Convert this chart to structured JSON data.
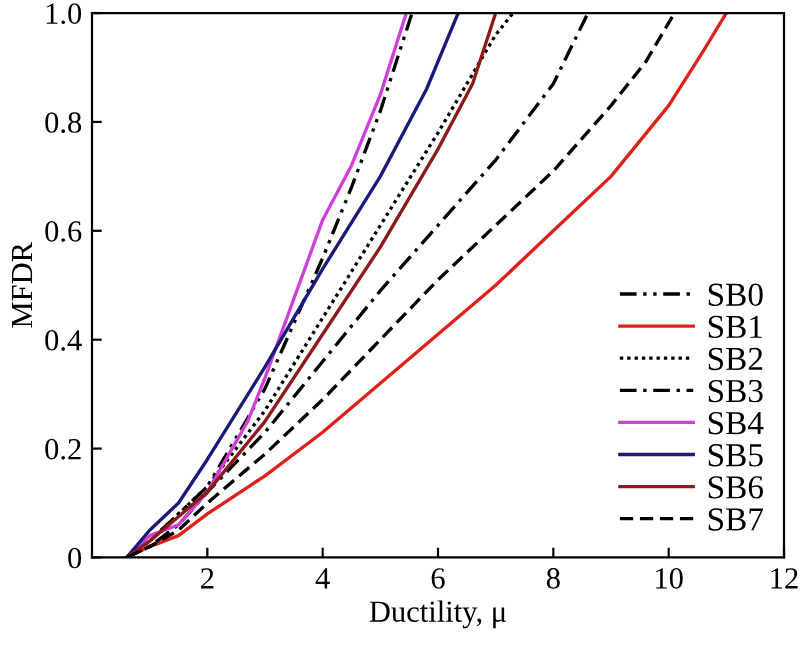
{
  "chart_data": {
    "type": "line",
    "xlabel": "Ductility, μ",
    "ylabel": "MFDR",
    "xlim": [
      0,
      12
    ],
    "ylim": [
      0,
      1.0
    ],
    "xticks": [
      2,
      4,
      6,
      8,
      10,
      12
    ],
    "yticks": [
      0,
      0.2,
      0.4,
      0.6,
      0.8,
      {
        "value": 1.0,
        "label": "1.0"
      }
    ],
    "grid": false,
    "legend": "bottom right",
    "marker": "none",
    "series": [
      {
        "name": "SB0",
        "color": "#000000",
        "line_style": "dashdotdot",
        "x": [
          0.6,
          1,
          2,
          3,
          4,
          4.5,
          5,
          5.55
        ],
        "values": [
          0,
          0.03,
          0.13,
          0.31,
          0.55,
          0.68,
          0.82,
          1.0
        ]
      },
      {
        "name": "SB1",
        "color": "#e0201c",
        "line_style": "solid",
        "x": [
          0.6,
          1,
          1.5,
          2,
          3,
          4,
          5,
          6,
          7,
          8,
          9,
          10,
          10.6,
          11
        ],
        "values": [
          0,
          0.02,
          0.04,
          0.08,
          0.15,
          0.23,
          0.32,
          0.41,
          0.5,
          0.6,
          0.7,
          0.83,
          0.93,
          1.0
        ]
      },
      {
        "name": "SB2",
        "color": "#000000",
        "line_style": "dotted",
        "x": [
          0.6,
          1,
          2,
          3,
          4,
          5,
          6,
          7,
          7.3
        ],
        "values": [
          0,
          0.03,
          0.13,
          0.27,
          0.44,
          0.61,
          0.78,
          0.96,
          1.0
        ]
      },
      {
        "name": "SB3",
        "color": "#000000",
        "line_style": "dashdot",
        "x": [
          0.6,
          1,
          1.5,
          2,
          3,
          4,
          5,
          6,
          7,
          8,
          8.6
        ],
        "values": [
          0,
          0.02,
          0.06,
          0.12,
          0.23,
          0.36,
          0.49,
          0.61,
          0.73,
          0.87,
          1.0
        ]
      },
      {
        "name": "SB4",
        "color": "#d040d8",
        "line_style": "solid",
        "x": [
          0.6,
          1,
          1.5,
          2,
          2.7,
          3,
          4,
          4.5,
          5,
          5.45
        ],
        "values": [
          0,
          0.04,
          0.06,
          0.12,
          0.25,
          0.33,
          0.62,
          0.72,
          0.85,
          1.0
        ]
      },
      {
        "name": "SB5",
        "color": "#1a1a78",
        "line_style": "solid",
        "x": [
          0.6,
          1,
          1.5,
          2,
          3,
          4,
          5,
          5.8,
          6.35
        ],
        "values": [
          0,
          0.05,
          0.1,
          0.18,
          0.35,
          0.53,
          0.7,
          0.86,
          1.0
        ]
      },
      {
        "name": "SB6",
        "color": "#8b1a1a",
        "line_style": "solid",
        "x": [
          0.6,
          1,
          2,
          3,
          4,
          5,
          6,
          6.6,
          7
        ],
        "values": [
          0,
          0.03,
          0.12,
          0.25,
          0.41,
          0.57,
          0.75,
          0.87,
          1.0
        ]
      },
      {
        "name": "SB7",
        "color": "#000000",
        "line_style": "dashed",
        "x": [
          0.6,
          1,
          1.5,
          2,
          3,
          4,
          5,
          6,
          7,
          8,
          9,
          9.6,
          10.1
        ],
        "values": [
          0,
          0.02,
          0.05,
          0.1,
          0.19,
          0.29,
          0.4,
          0.51,
          0.61,
          0.71,
          0.83,
          0.91,
          1.0
        ]
      }
    ]
  }
}
